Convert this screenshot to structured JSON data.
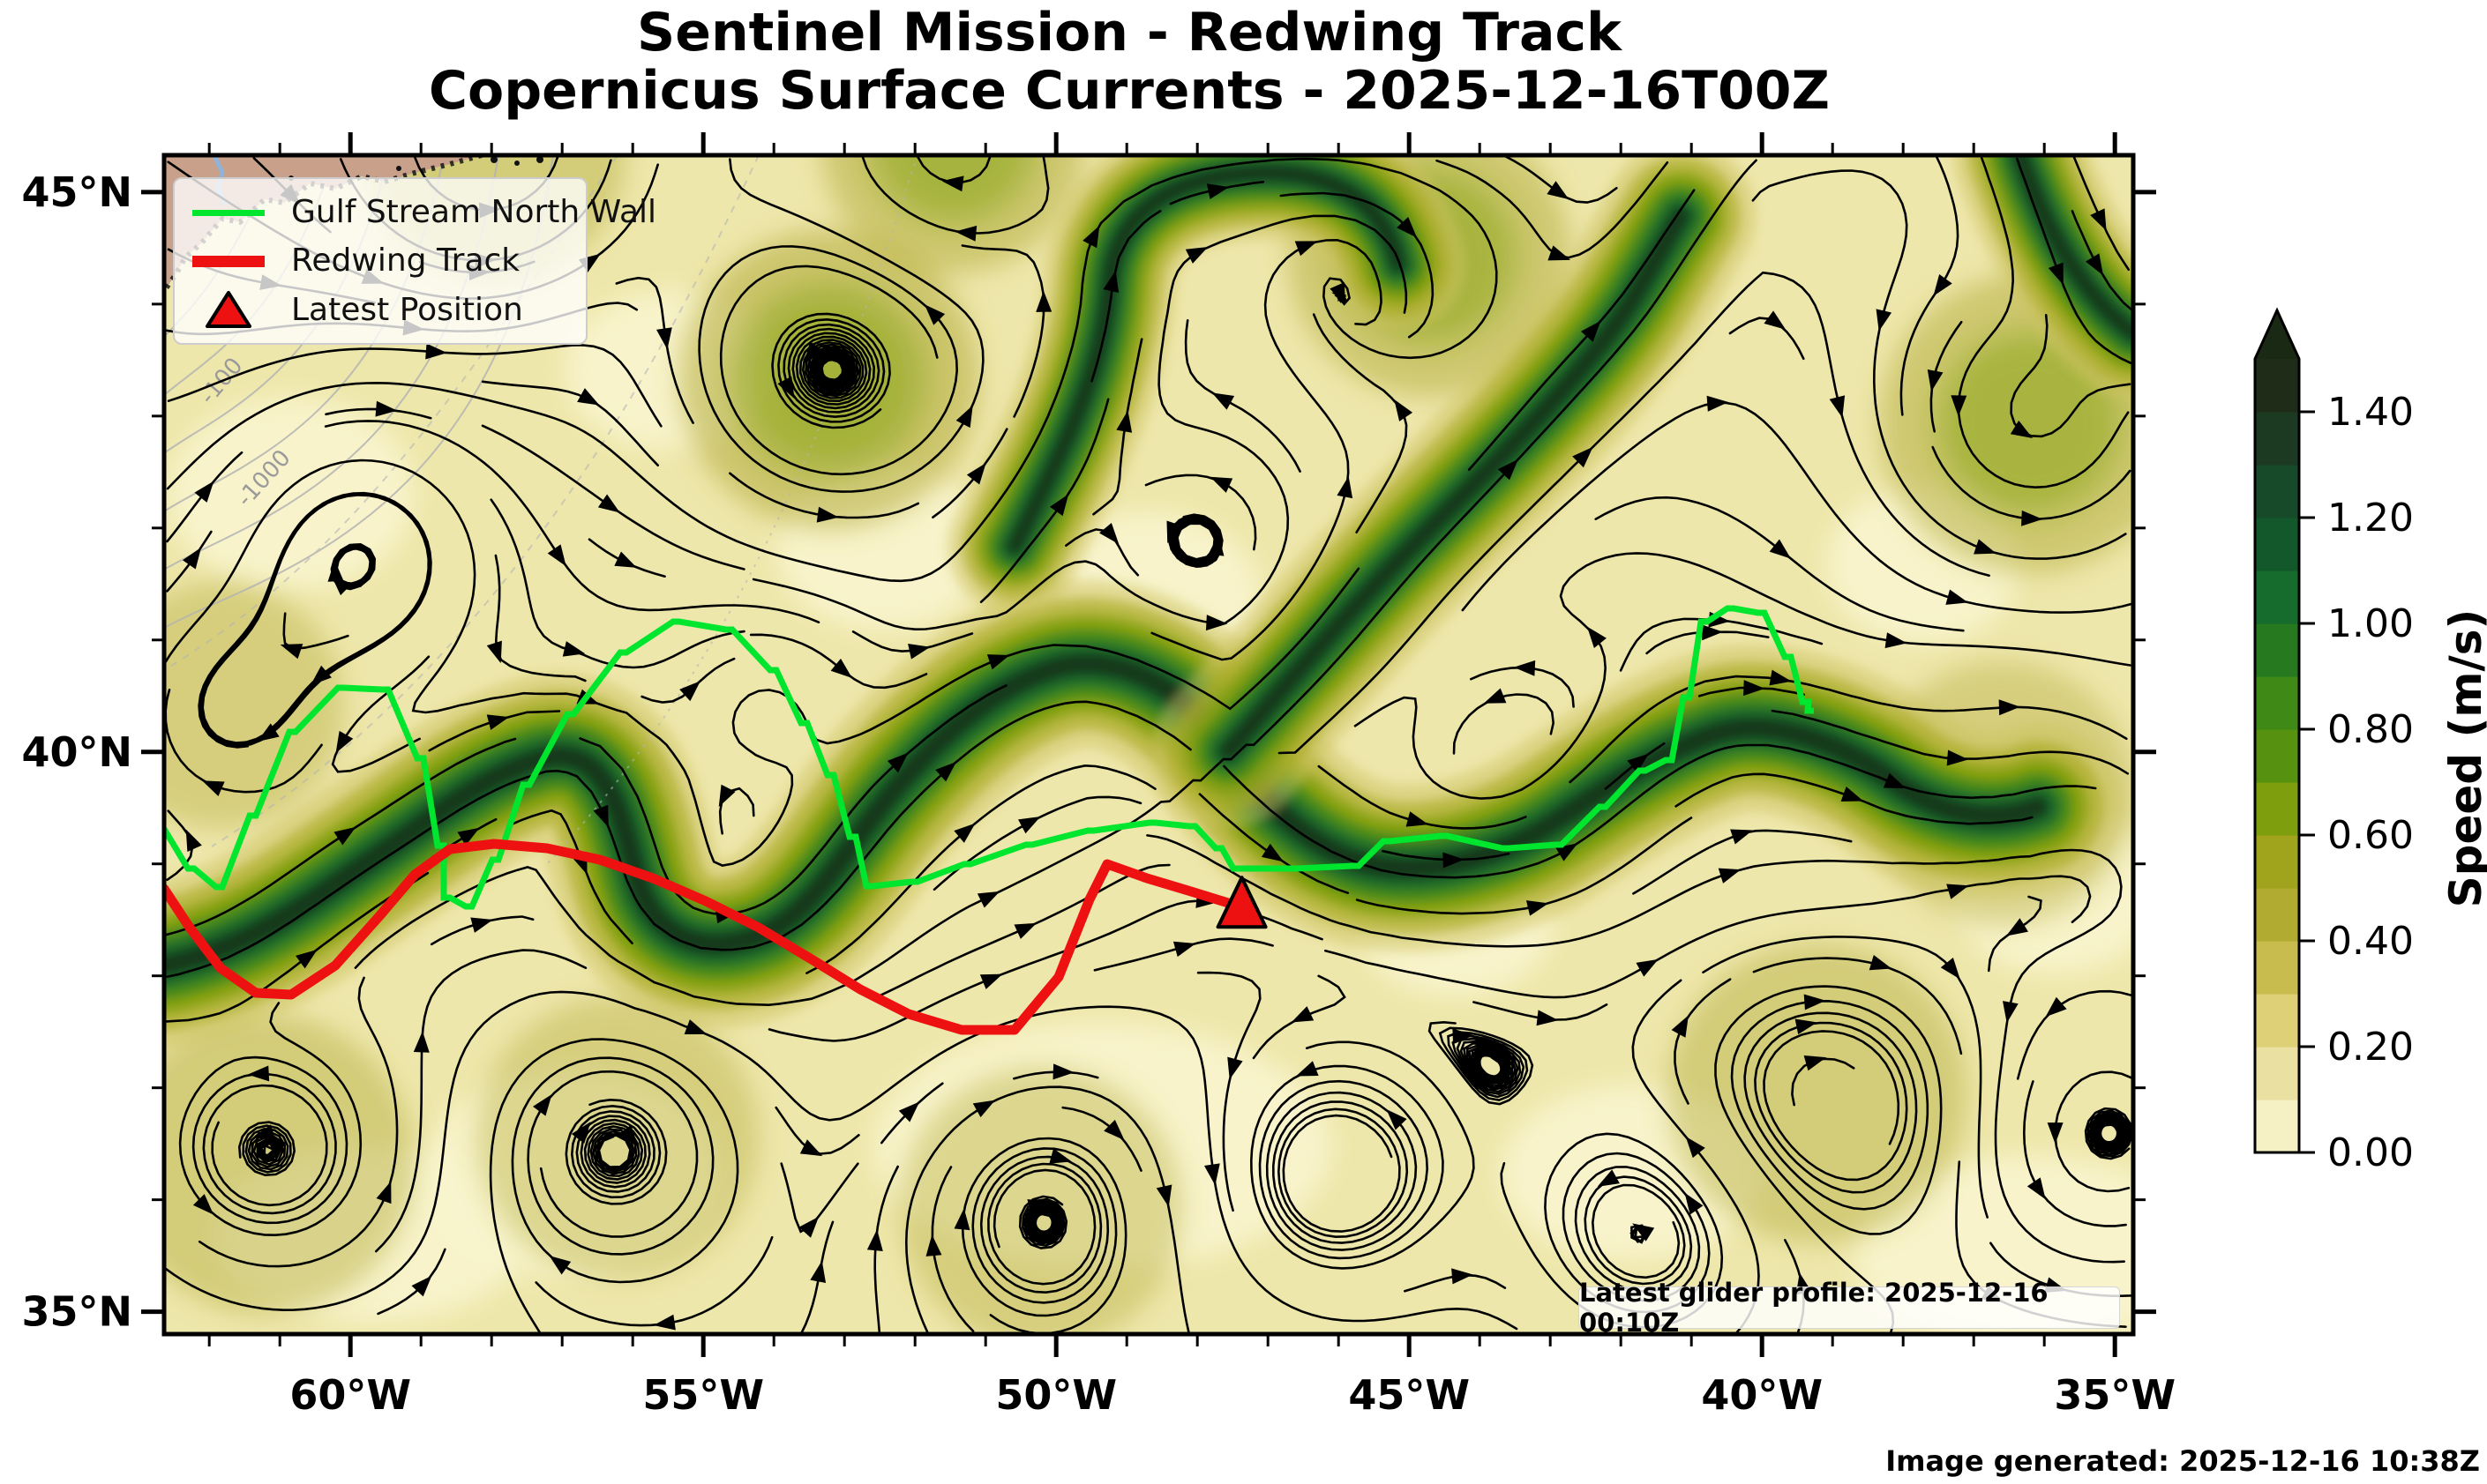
{
  "title": {
    "line1": "Sentinel Mission - Redwing Track",
    "line2": "Copernicus Surface Currents - 2025-12-16T00Z"
  },
  "legend": {
    "items": [
      {
        "label": "Gulf Stream North Wall",
        "swatch": "line",
        "color": "#00e62e"
      },
      {
        "label": "Redwing Track",
        "swatch": "line",
        "color": "#ee1111"
      },
      {
        "label": "Latest Position",
        "swatch": "triangle",
        "color": "#ee1111"
      }
    ]
  },
  "map": {
    "annotation": "Latest glider profile: 2025-12-16 00:10Z"
  },
  "footer": "Image generated: 2025-12-16 10:38Z",
  "colorbar": {
    "label": "Speed (m/s)",
    "ticks": [
      "0.00",
      "0.20",
      "0.40",
      "0.60",
      "0.80",
      "1.00",
      "1.20",
      "1.40"
    ],
    "tick_values": [
      0.0,
      0.2,
      0.4,
      0.6,
      0.8,
      1.0,
      1.2,
      1.4
    ],
    "vmin": 0.0,
    "vmax": 1.5,
    "extend": "max",
    "segment_colors": [
      "#f6f1c5",
      "#eae0a1",
      "#ddd077",
      "#c9bc4f",
      "#b1ab31",
      "#a0a41d",
      "#7f9e0d",
      "#579110",
      "#3f8a17",
      "#27791f",
      "#166c2c",
      "#12582b",
      "#164a28",
      "#1c3a22",
      "#1f2d18"
    ],
    "extend_color": "#1a2913"
  },
  "axes": {
    "x_tick_labels": [
      "60°W",
      "55°W",
      "50°W",
      "45°W",
      "40°W",
      "35°W"
    ],
    "x_tick_values": [
      -60,
      -55,
      -50,
      -45,
      -40,
      -35
    ],
    "y_tick_labels": [
      "45°N",
      "40°N",
      "35°N"
    ],
    "y_tick_values": [
      45,
      40,
      35
    ],
    "minor_tick_deg": 1
  },
  "bathymetry_labels": [
    {
      "text": "-100",
      "lon": -61.75,
      "lat": 43.27,
      "angle": -50
    },
    {
      "text": "-1000",
      "lon": -61.15,
      "lat": 42.4,
      "angle": -48
    }
  ],
  "chart_data": {
    "type": "map",
    "field": "surface current speed",
    "speed_units": "m/s",
    "lon_range": [
      -62.64,
      -34.74
    ],
    "lat_range": [
      34.8,
      45.33
    ],
    "gulf_stream_north_wall": {
      "lon": [
        -62.64,
        -62.22,
        -61.82,
        -61.34,
        -60.78,
        -60.09,
        -59.47,
        -58.97,
        -58.68,
        -58.59,
        -58.28,
        -57.9,
        -57.47,
        -56.84,
        -56.09,
        -55.34,
        -54.59,
        -53.97,
        -53.53,
        -53.15,
        -52.84,
        -52.6,
        -51.97,
        -51.22,
        -50.34,
        -49.47,
        -48.59,
        -48.03,
        -47.65,
        -47.4,
        -46.59,
        -45.72,
        -45.28,
        -44.47,
        -43.59,
        -42.84,
        -42.22,
        -41.65,
        -41.28,
        -41.03,
        -40.78,
        -40.4,
        -39.97,
        -39.59,
        -39.34,
        -39.27
      ],
      "lat": [
        39.31,
        38.96,
        38.79,
        39.43,
        40.18,
        40.57,
        40.56,
        39.94,
        39.16,
        38.7,
        38.62,
        39.04,
        39.71,
        40.34,
        40.89,
        41.16,
        41.09,
        40.73,
        40.26,
        39.79,
        39.24,
        38.8,
        38.84,
        39.0,
        39.17,
        39.3,
        39.37,
        39.34,
        39.14,
        38.96,
        38.96,
        38.98,
        39.2,
        39.25,
        39.14,
        39.17,
        39.51,
        39.83,
        39.93,
        40.49,
        41.16,
        41.28,
        41.24,
        40.85,
        40.45,
        40.37
      ]
    },
    "redwing_track": {
      "lon": [
        -62.64,
        -62.28,
        -61.84,
        -61.34,
        -60.84,
        -60.22,
        -59.59,
        -59.09,
        -58.59,
        -57.97,
        -57.22,
        -56.47,
        -55.72,
        -54.97,
        -54.22,
        -53.47,
        -52.78,
        -52.09,
        -51.34,
        -50.59,
        -49.97,
        -49.53,
        -49.28,
        -48.72,
        -48.09,
        -47.57,
        -47.37
      ],
      "lat": [
        38.78,
        38.43,
        38.07,
        37.85,
        37.83,
        38.09,
        38.53,
        38.9,
        39.13,
        39.18,
        39.14,
        39.04,
        38.87,
        38.67,
        38.43,
        38.15,
        37.88,
        37.66,
        37.52,
        37.52,
        37.99,
        38.68,
        39.0,
        38.87,
        38.75,
        38.65,
        38.61
      ]
    },
    "latest_position": {
      "lon": -47.37,
      "lat": 38.61
    }
  }
}
